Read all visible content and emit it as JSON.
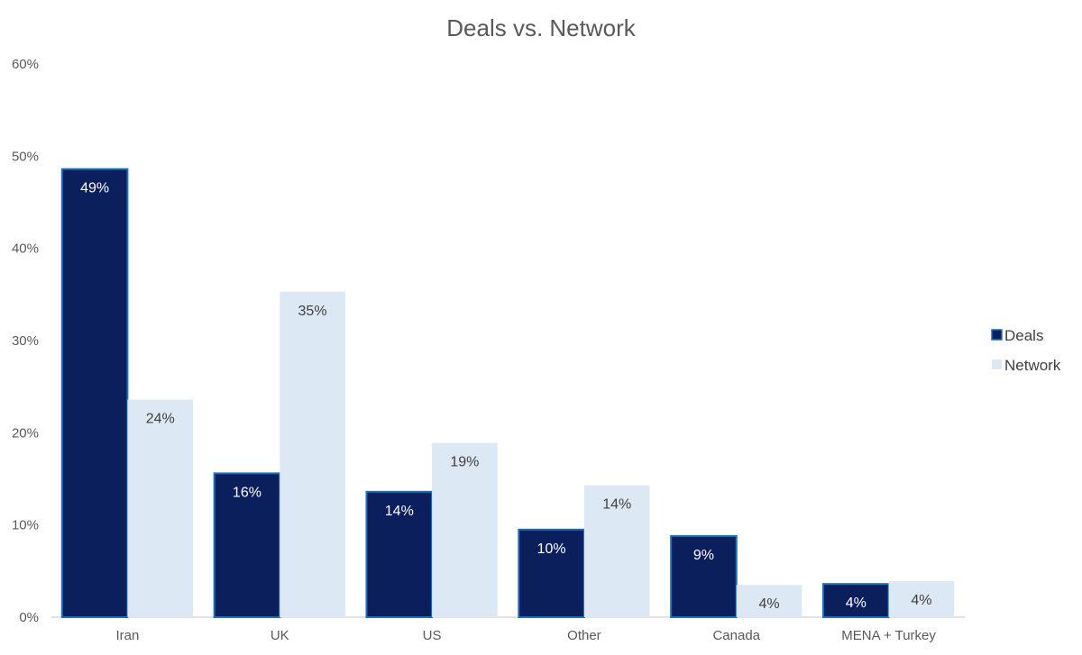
{
  "chart_data": {
    "type": "bar",
    "title": "Deals vs. Network",
    "categories": [
      "Iran",
      "UK",
      "US",
      "Other",
      "Canada",
      "MENA + Turkey"
    ],
    "series": [
      {
        "name": "Deals",
        "values": [
          48.6,
          15.6,
          13.6,
          9.5,
          8.8,
          3.6
        ],
        "labels": [
          "49%",
          "16%",
          "14%",
          "10%",
          "9%",
          "4%"
        ],
        "color": "#0b1f5c",
        "border": "#1d6fb8",
        "label_color": "#ffffff"
      },
      {
        "name": "Network",
        "values": [
          23.6,
          35.3,
          18.9,
          14.3,
          3.5,
          3.9
        ],
        "labels": [
          "24%",
          "35%",
          "19%",
          "14%",
          "4%",
          "4%"
        ],
        "color": "#dde8f5",
        "label_color": "#404040"
      }
    ],
    "ylim": [
      0,
      60
    ],
    "yticks": [
      "0%",
      "10%",
      "20%",
      "30%",
      "40%",
      "50%",
      "60%"
    ],
    "xlabel": "",
    "ylabel": "",
    "grid": false,
    "legend": "right"
  }
}
